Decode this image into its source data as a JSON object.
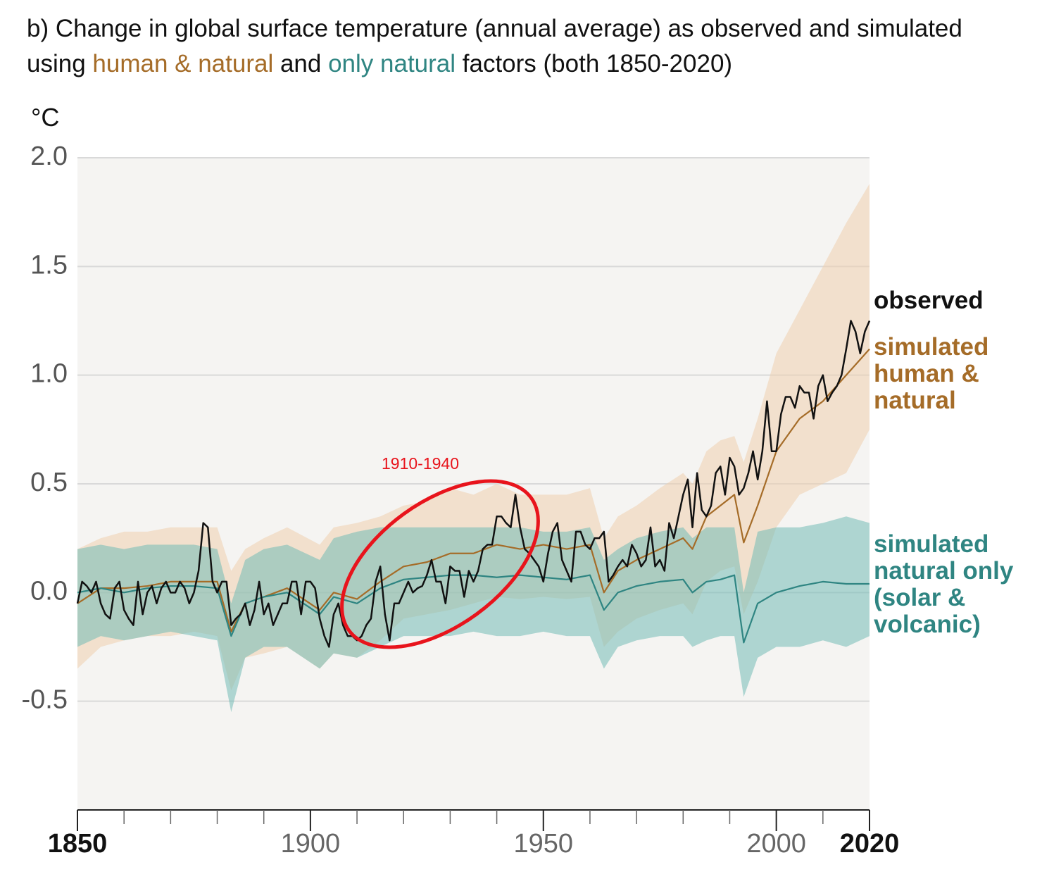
{
  "chart_data": {
    "type": "line",
    "title": [
      "b) Change in global surface temperature (annual average) as observed and simulated using ",
      "human & natural",
      " and ",
      "only natural",
      " factors (both 1850-2020)"
    ],
    "y_label": "°C",
    "annotations": [
      {
        "text": "1910-1940",
        "color": "#e8141c"
      }
    ],
    "xlim": [
      1850,
      2020
    ],
    "xticks": [
      1850,
      1900,
      1950,
      2000,
      2020
    ],
    "xminorticks": [
      1860,
      1870,
      1880,
      1890,
      1910,
      1920,
      1930,
      1940,
      1960,
      1970,
      1980,
      1990,
      2010
    ],
    "ylim": [
      -1,
      2
    ],
    "yticks": [
      {
        "value": 2,
        "label": "2.0"
      },
      1.5,
      {
        "value": 1,
        "label": "1.0"
      },
      0.5,
      {
        "value": 0,
        "label": "0.0"
      },
      -0.5
    ],
    "grid": true,
    "series": [
      {
        "name": "observed",
        "color": "#111111",
        "x": [
          1850,
          1851,
          1852,
          1853,
          1854,
          1855,
          1856,
          1857,
          1858,
          1859,
          1860,
          1861,
          1862,
          1863,
          1864,
          1865,
          1866,
          1867,
          1868,
          1869,
          1870,
          1871,
          1872,
          1873,
          1874,
          1875,
          1876,
          1877,
          1878,
          1879,
          1880,
          1881,
          1882,
          1883,
          1884,
          1885,
          1886,
          1887,
          1888,
          1889,
          1890,
          1891,
          1892,
          1893,
          1894,
          1895,
          1896,
          1897,
          1898,
          1899,
          1900,
          1901,
          1902,
          1903,
          1904,
          1905,
          1906,
          1907,
          1908,
          1909,
          1910,
          1911,
          1912,
          1913,
          1914,
          1915,
          1916,
          1917,
          1918,
          1919,
          1920,
          1921,
          1922,
          1923,
          1924,
          1925,
          1926,
          1927,
          1928,
          1929,
          1930,
          1931,
          1932,
          1933,
          1934,
          1935,
          1936,
          1937,
          1938,
          1939,
          1940,
          1941,
          1942,
          1943,
          1944,
          1945,
          1946,
          1947,
          1948,
          1949,
          1950,
          1951,
          1952,
          1953,
          1954,
          1955,
          1956,
          1957,
          1958,
          1959,
          1960,
          1961,
          1962,
          1963,
          1964,
          1965,
          1966,
          1967,
          1968,
          1969,
          1970,
          1971,
          1972,
          1973,
          1974,
          1975,
          1976,
          1977,
          1978,
          1979,
          1980,
          1981,
          1982,
          1983,
          1984,
          1985,
          1986,
          1987,
          1988,
          1989,
          1990,
          1991,
          1992,
          1993,
          1994,
          1995,
          1996,
          1997,
          1998,
          1999,
          2000,
          2001,
          2002,
          2003,
          2004,
          2005,
          2006,
          2007,
          2008,
          2009,
          2010,
          2011,
          2012,
          2013,
          2014,
          2015,
          2016,
          2017,
          2018,
          2019,
          2020
        ],
        "values": [
          -0.05,
          0.05,
          0.03,
          0.0,
          0.05,
          -0.05,
          -0.1,
          -0.12,
          0.02,
          0.05,
          -0.08,
          -0.12,
          -0.15,
          0.05,
          -0.1,
          0.0,
          0.03,
          -0.05,
          0.02,
          0.05,
          0.0,
          0.0,
          0.05,
          0.02,
          -0.05,
          0.0,
          0.1,
          0.32,
          0.3,
          0.05,
          0.0,
          0.05,
          0.05,
          -0.15,
          -0.12,
          -0.1,
          -0.05,
          -0.15,
          -0.08,
          0.05,
          -0.1,
          -0.05,
          -0.15,
          -0.1,
          -0.05,
          -0.05,
          0.05,
          0.05,
          -0.1,
          0.05,
          0.05,
          0.02,
          -0.12,
          -0.2,
          -0.25,
          -0.1,
          -0.05,
          -0.15,
          -0.2,
          -0.2,
          -0.22,
          -0.2,
          -0.15,
          -0.12,
          0.05,
          0.12,
          -0.1,
          -0.22,
          -0.05,
          -0.05,
          0.0,
          0.05,
          0.0,
          0.02,
          0.03,
          0.08,
          0.15,
          0.05,
          0.05,
          -0.05,
          0.12,
          0.1,
          0.1,
          -0.02,
          0.1,
          0.05,
          0.1,
          0.2,
          0.22,
          0.22,
          0.35,
          0.35,
          0.32,
          0.3,
          0.45,
          0.3,
          0.2,
          0.18,
          0.15,
          0.12,
          0.05,
          0.18,
          0.28,
          0.32,
          0.15,
          0.1,
          0.05,
          0.28,
          0.28,
          0.22,
          0.2,
          0.25,
          0.25,
          0.28,
          0.05,
          0.08,
          0.12,
          0.15,
          0.12,
          0.22,
          0.18,
          0.12,
          0.15,
          0.3,
          0.12,
          0.15,
          0.1,
          0.32,
          0.25,
          0.35,
          0.45,
          0.52,
          0.3,
          0.55,
          0.38,
          0.35,
          0.4,
          0.55,
          0.58,
          0.45,
          0.62,
          0.58,
          0.45,
          0.48,
          0.55,
          0.65,
          0.52,
          0.65,
          0.88,
          0.65,
          0.65,
          0.82,
          0.9,
          0.9,
          0.85,
          0.95,
          0.92,
          0.92,
          0.8,
          0.95,
          1.0,
          0.88,
          0.92,
          0.95,
          1.0,
          1.12,
          1.25,
          1.2,
          1.1,
          1.2,
          1.25
        ]
      },
      {
        "name": "simulated human & natural",
        "color": "#a56c28",
        "band_color": "#efcfae",
        "x": [
          1850,
          1855,
          1860,
          1865,
          1870,
          1875,
          1880,
          1883,
          1886,
          1890,
          1895,
          1902,
          1905,
          1910,
          1915,
          1920,
          1925,
          1930,
          1935,
          1940,
          1945,
          1950,
          1955,
          1960,
          1963,
          1966,
          1970,
          1975,
          1980,
          1982,
          1985,
          1988,
          1991,
          1993,
          1996,
          2000,
          2005,
          2010,
          2015,
          2020
        ],
        "values": [
          -0.05,
          0.02,
          0.02,
          0.03,
          0.05,
          0.05,
          0.05,
          -0.18,
          -0.05,
          -0.02,
          0.02,
          -0.08,
          0.0,
          -0.03,
          0.05,
          0.12,
          0.14,
          0.18,
          0.18,
          0.22,
          0.2,
          0.22,
          0.2,
          0.22,
          0.0,
          0.1,
          0.15,
          0.2,
          0.25,
          0.2,
          0.35,
          0.4,
          0.45,
          0.23,
          0.4,
          0.65,
          0.8,
          0.88,
          1.0,
          1.12
        ],
        "lower": [
          -0.35,
          -0.25,
          -0.22,
          -0.2,
          -0.2,
          -0.18,
          -0.2,
          -0.45,
          -0.3,
          -0.28,
          -0.25,
          -0.35,
          -0.28,
          -0.3,
          -0.22,
          -0.12,
          -0.1,
          -0.08,
          -0.05,
          -0.02,
          -0.03,
          -0.02,
          -0.03,
          -0.02,
          -0.25,
          -0.18,
          -0.12,
          -0.08,
          -0.05,
          -0.1,
          0.05,
          0.1,
          0.12,
          -0.1,
          0.05,
          0.3,
          0.45,
          0.5,
          0.55,
          0.75
        ],
        "upper": [
          0.2,
          0.25,
          0.28,
          0.28,
          0.3,
          0.3,
          0.3,
          0.1,
          0.2,
          0.25,
          0.3,
          0.22,
          0.3,
          0.32,
          0.35,
          0.4,
          0.42,
          0.48,
          0.45,
          0.5,
          0.45,
          0.45,
          0.45,
          0.48,
          0.25,
          0.35,
          0.4,
          0.48,
          0.55,
          0.5,
          0.65,
          0.7,
          0.72,
          0.6,
          0.8,
          1.1,
          1.3,
          1.5,
          1.7,
          1.88
        ]
      },
      {
        "name": "simulated natural only (solar & volcanic)",
        "color": "#2f8582",
        "band_color": "#72bcb6",
        "x": [
          1850,
          1855,
          1860,
          1865,
          1870,
          1875,
          1880,
          1883,
          1886,
          1890,
          1895,
          1902,
          1905,
          1910,
          1915,
          1920,
          1925,
          1930,
          1935,
          1940,
          1945,
          1950,
          1955,
          1960,
          1963,
          1966,
          1970,
          1975,
          1980,
          1982,
          1985,
          1988,
          1991,
          1993,
          1996,
          2000,
          2005,
          2010,
          2015,
          2020
        ],
        "values": [
          0.0,
          0.02,
          0.0,
          0.02,
          0.03,
          0.03,
          0.02,
          -0.2,
          -0.05,
          -0.02,
          0.0,
          -0.1,
          -0.02,
          -0.05,
          0.02,
          0.06,
          0.07,
          0.08,
          0.08,
          0.07,
          0.08,
          0.07,
          0.06,
          0.08,
          -0.08,
          0.0,
          0.03,
          0.05,
          0.06,
          0.0,
          0.05,
          0.06,
          0.08,
          -0.23,
          -0.05,
          0.0,
          0.03,
          0.05,
          0.04,
          0.04
        ],
        "lower": [
          -0.25,
          -0.2,
          -0.22,
          -0.2,
          -0.18,
          -0.2,
          -0.22,
          -0.55,
          -0.3,
          -0.25,
          -0.25,
          -0.35,
          -0.28,
          -0.3,
          -0.25,
          -0.2,
          -0.2,
          -0.2,
          -0.18,
          -0.2,
          -0.2,
          -0.18,
          -0.2,
          -0.2,
          -0.35,
          -0.25,
          -0.22,
          -0.2,
          -0.2,
          -0.25,
          -0.22,
          -0.2,
          -0.2,
          -0.48,
          -0.3,
          -0.25,
          -0.25,
          -0.22,
          -0.25,
          -0.2
        ],
        "upper": [
          0.2,
          0.22,
          0.2,
          0.22,
          0.22,
          0.22,
          0.2,
          -0.05,
          0.15,
          0.2,
          0.22,
          0.15,
          0.25,
          0.28,
          0.3,
          0.3,
          0.3,
          0.3,
          0.3,
          0.3,
          0.3,
          0.28,
          0.28,
          0.3,
          0.15,
          0.2,
          0.25,
          0.28,
          0.3,
          0.25,
          0.3,
          0.3,
          0.3,
          0.0,
          0.28,
          0.3,
          0.3,
          0.32,
          0.35,
          0.32
        ]
      }
    ]
  }
}
